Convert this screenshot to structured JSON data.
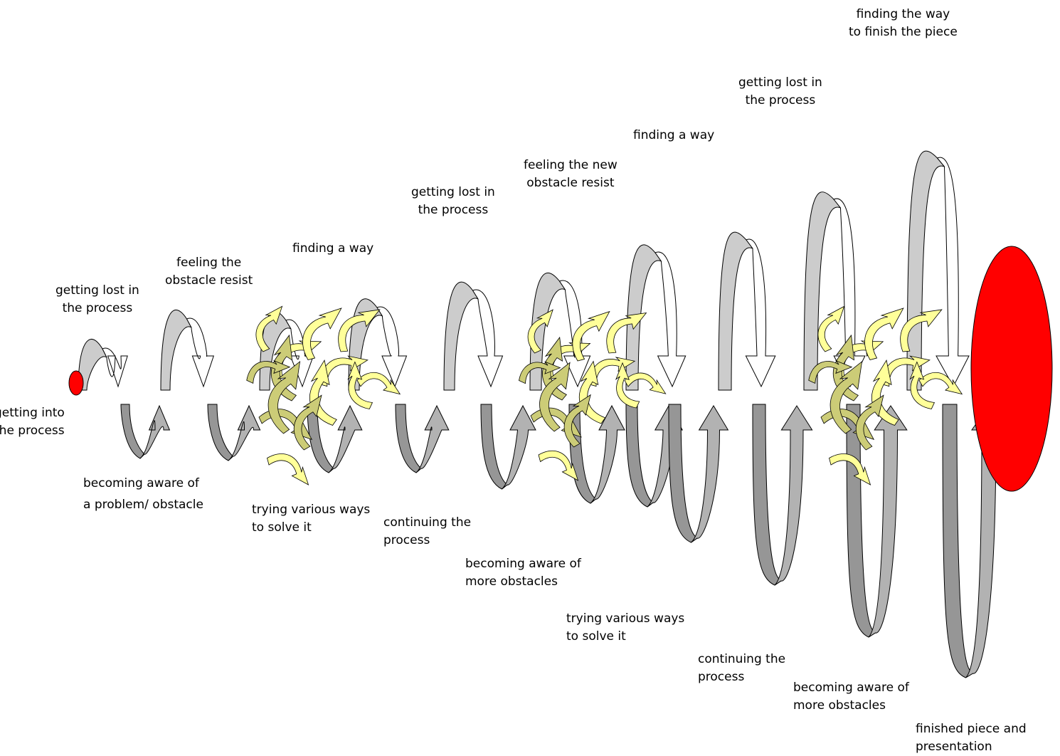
{
  "diagram": {
    "colors": {
      "start_dot": "#ff0000",
      "finish_ellipse": "#ff0000",
      "arrow_light": "#cccccc",
      "arrow_dark": "#969696",
      "arrow_up": "#b2b2b2",
      "arrow_white": "#ffffff",
      "swirl_yellow": "#ffff99",
      "swirl_olive": "#cccc77",
      "outline": "#000000"
    },
    "labels": {
      "getting_into": [
        "getting into",
        "the process"
      ],
      "lost_1": [
        "getting lost in",
        "the process"
      ],
      "aware_1": [
        "becoming aware of",
        "a problem/ obstacle"
      ],
      "resist_1": [
        "feeling the",
        "obstacle resist"
      ],
      "finding_1": [
        "finding a way"
      ],
      "trying_1": [
        "trying various ways",
        "to solve it"
      ],
      "continuing_1": [
        "continuing the",
        "process"
      ],
      "lost_2": [
        "getting lost in",
        "the process"
      ],
      "aware_2": [
        "becoming aware of",
        "more obstacles"
      ],
      "resist_2": [
        "feeling the new",
        "obstacle resist"
      ],
      "finding_2": [
        "finding a way"
      ],
      "trying_2": [
        "trying various ways",
        "to solve it"
      ],
      "lost_3": [
        "getting lost in",
        "the process"
      ],
      "continuing_2": [
        "continuing the",
        "process"
      ],
      "aware_3": [
        "becoming aware of",
        "more obstacles"
      ],
      "finish_way": [
        "finding the way",
        "to finish the piece"
      ],
      "finished": [
        "finished piece and",
        "presentation"
      ]
    }
  }
}
